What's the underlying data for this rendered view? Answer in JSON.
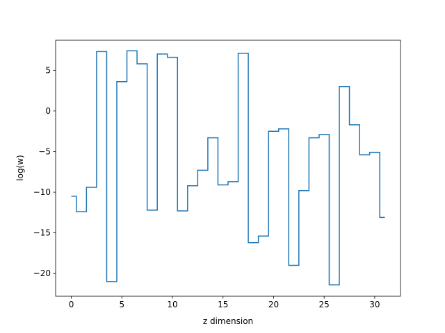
{
  "chart_data": {
    "type": "line",
    "drawstyle": "steps-mid",
    "title": "",
    "xlabel": "z dimension",
    "ylabel": "log(w)",
    "xlim": [
      -1.55,
      32.55
    ],
    "ylim": [
      -22.8,
      8.7
    ],
    "xticks": [
      0,
      5,
      10,
      15,
      20,
      25,
      30
    ],
    "yticks": [
      5,
      0,
      -5,
      -10,
      -15,
      -20
    ],
    "ytick_labels": [
      "5",
      "0",
      "−5",
      "−10",
      "−15",
      "−20"
    ],
    "grid": false,
    "legend": "none",
    "color": "#1f77b4",
    "x": [
      0,
      1,
      2,
      3,
      4,
      5,
      6,
      7,
      8,
      9,
      10,
      11,
      12,
      13,
      14,
      15,
      16,
      17,
      18,
      19,
      20,
      21,
      22,
      23,
      24,
      25,
      26,
      27,
      28,
      29,
      30,
      31
    ],
    "series": [
      {
        "values": [
          -10.5,
          -12.4,
          -9.4,
          7.3,
          -21.0,
          3.6,
          7.4,
          5.8,
          -12.2,
          7.0,
          6.6,
          -12.3,
          -9.2,
          -7.3,
          -3.3,
          -9.1,
          -8.7,
          7.1,
          -16.2,
          -15.4,
          -2.5,
          -2.2,
          -19.0,
          -9.8,
          -3.3,
          -2.9,
          -21.4,
          3.0,
          -1.7,
          -5.4,
          -5.1,
          -13.1
        ]
      }
    ]
  }
}
